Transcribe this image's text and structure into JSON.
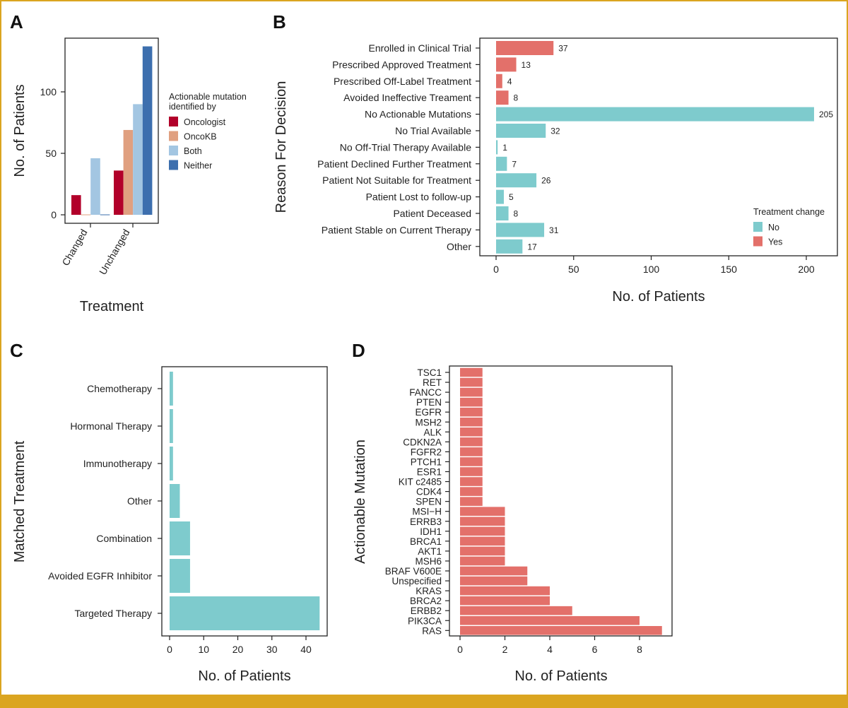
{
  "figure": {
    "border_color": "#DBA520"
  },
  "chart_data": [
    {
      "panel": "A",
      "type": "bar",
      "orientation": "vertical",
      "xlabel": "Treatment",
      "ylabel": "No. of Patients",
      "categories": [
        "Changed",
        "Unchanged"
      ],
      "yticks": [
        0,
        50,
        100
      ],
      "ylim": [
        0,
        140
      ],
      "legend_title": "Actionable mutation identified by",
      "legend_position": "right",
      "series": [
        {
          "name": "Oncologist",
          "color": "#B2002A",
          "values": [
            16,
            36
          ]
        },
        {
          "name": "OncoKB",
          "color": "#E0A080",
          "values": [
            0,
            69
          ]
        },
        {
          "name": "Both",
          "color": "#A3C6E2",
          "values": [
            46,
            90
          ]
        },
        {
          "name": "Neither",
          "color": "#3D6FAE",
          "values": [
            0,
            137
          ]
        }
      ]
    },
    {
      "panel": "B",
      "type": "bar",
      "orientation": "horizontal",
      "xlabel": "No. of Patients",
      "ylabel": "Reason For Decision",
      "xticks": [
        0,
        50,
        100,
        150,
        200
      ],
      "xlim": [
        0,
        220
      ],
      "legend_title": "Treatment change",
      "legend_position": "bottom-right",
      "legend": [
        {
          "name": "No",
          "color": "#7ECBCD"
        },
        {
          "name": "Yes",
          "color": "#E3706A"
        }
      ],
      "categories": [
        "Enrolled in Clinical Trial",
        "Prescribed Approved Treatment",
        "Prescribed Off-Label Treatment",
        "Avoided Ineffective Treament",
        "No Actionable Mutations",
        "No Trial Available",
        "No Off-Trial Therapy Available",
        "Patient Declined Further Treatment",
        "Patient Not Suitable for Treatment",
        "Patient Lost to follow-up",
        "Patient Deceased",
        "Patient Stable on Current Therapy",
        "Other"
      ],
      "values": [
        37,
        13,
        4,
        8,
        205,
        32,
        1,
        7,
        26,
        5,
        8,
        31,
        17
      ],
      "group": [
        "Yes",
        "Yes",
        "Yes",
        "Yes",
        "No",
        "No",
        "No",
        "No",
        "No",
        "No",
        "No",
        "No",
        "No"
      ],
      "data_labels": [
        "37",
        "13",
        "4",
        "8",
        "205",
        "32",
        "1",
        "7",
        "26",
        "5",
        "8",
        "31",
        "17"
      ]
    },
    {
      "panel": "C",
      "type": "bar",
      "orientation": "horizontal",
      "xlabel": "No. of Patients",
      "ylabel": "Matched Treatment",
      "xticks": [
        0,
        10,
        20,
        30,
        40
      ],
      "xlim": [
        0,
        46
      ],
      "color": "#7ECBCD",
      "categories": [
        "Chemotherapy",
        "Hormonal Therapy",
        "Immunotherapy",
        "Other",
        "Combination",
        "Avoided EGFR Inhibitor",
        "Targeted Therapy"
      ],
      "values": [
        1,
        1,
        1,
        3,
        6,
        6,
        44
      ]
    },
    {
      "panel": "D",
      "type": "bar",
      "orientation": "horizontal",
      "xlabel": "No. of Patients",
      "ylabel": "Actionable Mutation",
      "xticks": [
        0,
        2,
        4,
        6,
        8
      ],
      "xlim": [
        0,
        9.5
      ],
      "color": "#E3706A",
      "categories": [
        "TSC1",
        "RET",
        "FANCC",
        "PTEN",
        "EGFR",
        "MSH2",
        "ALK",
        "CDKN2A",
        "FGFR2",
        "PTCH1",
        "ESR1",
        "KIT c2485",
        "CDK4",
        "SPEN",
        "MSI−H",
        "ERRB3",
        "IDH1",
        "BRCA1",
        "AKT1",
        "MSH6",
        "BRAF V600E",
        "Unspecified",
        "KRAS",
        "BRCA2",
        "ERBB2",
        "PIK3CA",
        "RAS"
      ],
      "values": [
        1,
        1,
        1,
        1,
        1,
        1,
        1,
        1,
        1,
        1,
        1,
        1,
        1,
        1,
        2,
        2,
        2,
        2,
        2,
        2,
        3,
        3,
        4,
        4,
        5,
        8,
        9
      ]
    }
  ]
}
